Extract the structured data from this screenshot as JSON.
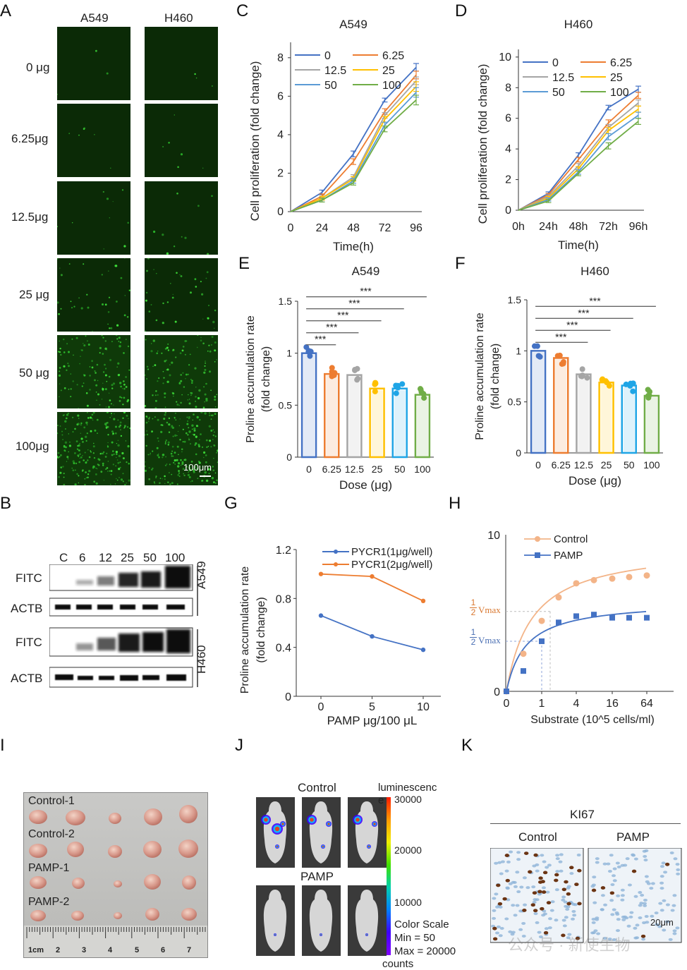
{
  "panels": {
    "A": {
      "label": "A",
      "cols": [
        "A549",
        "H460"
      ],
      "rows": [
        "0 μg",
        "6.25μg",
        "12.5μg",
        "25 μg",
        "50 μg",
        "100μg"
      ],
      "scalebar": "100μm"
    },
    "B": {
      "label": "B",
      "lanes": [
        "C",
        "6",
        "12",
        "25",
        "50",
        "100"
      ],
      "rows": [
        "FITC",
        "ACTB",
        "FITC",
        "ACTB"
      ],
      "cells": [
        "A549",
        "H460"
      ]
    },
    "C": {
      "label": "C"
    },
    "D": {
      "label": "D"
    },
    "E": {
      "label": "E"
    },
    "F": {
      "label": "F"
    },
    "G": {
      "label": "G"
    },
    "H": {
      "label": "H",
      "vmax_half": "Vmax",
      "vmax_frac_num": "1",
      "vmax_frac_den": "2"
    },
    "I": {
      "label": "I",
      "rows": [
        "Control-1",
        "Control-2",
        "PAMP-1",
        "PAMP-2"
      ],
      "ruler": [
        "1cm",
        "2",
        "3",
        "4",
        "5",
        "6",
        "7"
      ]
    },
    "J": {
      "label": "J",
      "groups": [
        "Control",
        "PAMP"
      ],
      "colorbar_title": "luminescenc",
      "colorbar_title_tail": "e",
      "ticks": [
        "30000",
        "20000",
        "10000"
      ],
      "color_scale": "Color Scale",
      "min": "Min = 50",
      "max": "Max = 20000",
      "unit": "counts"
    },
    "K": {
      "label": "K",
      "title": "KI67",
      "cols": [
        "Control",
        "PAMP"
      ],
      "scalebar": "20μm"
    },
    "watermark": "公众号 · 新使生物"
  },
  "chart_data": [
    {
      "id": "C",
      "type": "line",
      "title": "A549",
      "xlabel": "Time(h)",
      "ylabel": "Cell proliferation (fold change)",
      "x": [
        0,
        24,
        48,
        72,
        96
      ],
      "xticks": [
        "0",
        "24",
        "48",
        "72",
        "96"
      ],
      "ylim": [
        0,
        8.8
      ],
      "yticks": [
        0,
        2,
        4,
        6,
        8
      ],
      "legend": "top-left",
      "legend_cols": 2,
      "series": [
        {
          "name": "0",
          "color": "#4472c4",
          "values": [
            0,
            1.0,
            3.0,
            5.8,
            7.5
          ],
          "err": [
            0,
            0.12,
            0.15,
            0.1,
            0.2
          ]
        },
        {
          "name": "6.25",
          "color": "#ed7d31",
          "values": [
            0,
            0.8,
            2.6,
            5.2,
            7.1
          ],
          "err": [
            0,
            0.12,
            0.15,
            0.15,
            0.2
          ]
        },
        {
          "name": "12.5",
          "color": "#a5a5a5",
          "values": [
            0,
            0.7,
            1.8,
            5.0,
            6.8
          ],
          "err": [
            0,
            0.1,
            0.12,
            0.15,
            0.2
          ]
        },
        {
          "name": "25",
          "color": "#ffc000",
          "values": [
            0,
            0.7,
            1.7,
            4.8,
            6.5
          ],
          "err": [
            0,
            0.1,
            0.12,
            0.15,
            0.25
          ]
        },
        {
          "name": "50",
          "color": "#5b9bd5",
          "values": [
            0,
            0.6,
            1.6,
            4.5,
            6.2
          ],
          "err": [
            0,
            0.1,
            0.12,
            0.15,
            0.25
          ]
        },
        {
          "name": "100",
          "color": "#70ad47",
          "values": [
            0,
            0.6,
            1.5,
            4.3,
            5.8
          ],
          "err": [
            0,
            0.1,
            0.12,
            0.15,
            0.25
          ]
        }
      ]
    },
    {
      "id": "D",
      "type": "line",
      "title": "H460",
      "xlabel": "Time(h)",
      "ylabel": "Cell proliferation (fold change)",
      "x": [
        0,
        24,
        48,
        72,
        96
      ],
      "xticks": [
        "0h",
        "24h",
        "48h",
        "72h",
        "96h"
      ],
      "ylim": [
        0,
        10.5
      ],
      "yticks": [
        0,
        2,
        4,
        6,
        8,
        10
      ],
      "legend": "top-left",
      "legend_cols": 2,
      "series": [
        {
          "name": "0",
          "color": "#4472c4",
          "values": [
            0,
            1.1,
            3.6,
            6.7,
            7.9
          ],
          "err": [
            0,
            0.1,
            0.15,
            0.15,
            0.2
          ]
        },
        {
          "name": "6.25",
          "color": "#ed7d31",
          "values": [
            0,
            1.0,
            3.3,
            5.7,
            7.5
          ],
          "err": [
            0,
            0.1,
            0.15,
            0.2,
            0.2
          ]
        },
        {
          "name": "12.5",
          "color": "#a5a5a5",
          "values": [
            0,
            0.9,
            2.9,
            5.4,
            7.0
          ],
          "err": [
            0,
            0.1,
            0.15,
            0.2,
            0.2
          ]
        },
        {
          "name": "25",
          "color": "#ffc000",
          "values": [
            0,
            0.8,
            2.7,
            5.2,
            6.6
          ],
          "err": [
            0,
            0.1,
            0.15,
            0.2,
            0.2
          ]
        },
        {
          "name": "50",
          "color": "#5b9bd5",
          "values": [
            0,
            0.7,
            2.5,
            4.8,
            6.2
          ],
          "err": [
            0,
            0.1,
            0.15,
            0.2,
            0.2
          ]
        },
        {
          "name": "100",
          "color": "#70ad47",
          "values": [
            0,
            0.6,
            2.4,
            4.2,
            5.8
          ],
          "err": [
            0,
            0.1,
            0.15,
            0.2,
            0.2
          ]
        }
      ]
    },
    {
      "id": "E",
      "type": "bar",
      "title": "A549",
      "xlabel": "Dose (μg)",
      "ylabel": "Proline accumulation rate",
      "ylabel2": "(fold change)",
      "categories": [
        "0",
        "6.25",
        "12.5",
        "25",
        "50",
        "100"
      ],
      "values": [
        1.0,
        0.8,
        0.79,
        0.66,
        0.66,
        0.6
      ],
      "ylim": [
        0,
        1.5
      ],
      "yticks": [
        "0",
        "0.5",
        "1",
        "1.5"
      ],
      "colors": [
        "#4472c4",
        "#ed7d31",
        "#a5a5a5",
        "#ffc000",
        "#1fa5e6",
        "#70ad47"
      ],
      "sig": [
        {
          "to": 1,
          "label": "***"
        },
        {
          "to": 2,
          "label": "***"
        },
        {
          "to": 3,
          "label": "***"
        },
        {
          "to": 4,
          "label": "***"
        },
        {
          "to": 5,
          "label": "***"
        }
      ]
    },
    {
      "id": "F",
      "type": "bar",
      "title": "H460",
      "xlabel": "Dose (μg)",
      "ylabel": "Proline accumulation rate",
      "ylabel2": "(fold change)",
      "categories": [
        "0",
        "6.25",
        "12.5",
        "25",
        "50",
        "100"
      ],
      "values": [
        1.0,
        0.93,
        0.77,
        0.69,
        0.66,
        0.56
      ],
      "ylim": [
        0,
        1.5
      ],
      "yticks": [
        "0",
        "0.5",
        "1",
        "1.5"
      ],
      "colors": [
        "#4472c4",
        "#ed7d31",
        "#a5a5a5",
        "#ffc000",
        "#1fa5e6",
        "#70ad47"
      ],
      "sig": [
        {
          "to": 2,
          "label": "***"
        },
        {
          "to": 3,
          "label": "***"
        },
        {
          "to": 4,
          "label": "***"
        },
        {
          "to": 5,
          "label": "***"
        }
      ]
    },
    {
      "id": "G",
      "type": "line",
      "xlabel": "PAMP μg/100 μL",
      "ylabel": "Proline accumulation rate",
      "ylabel2": "(fold change)",
      "x": [
        0,
        5,
        10
      ],
      "xticks": [
        "0",
        "5",
        "10"
      ],
      "ylim": [
        0,
        1.2
      ],
      "yticks": [
        "0",
        "0.4",
        "0.8",
        "1.2"
      ],
      "legend": "top-right",
      "series": [
        {
          "name": "PYCR1(1μg/well)",
          "color": "#4472c4",
          "values": [
            0.66,
            0.49,
            0.38
          ]
        },
        {
          "name": "PYCR1(2μg/well)",
          "color": "#ed7d31",
          "values": [
            1.0,
            0.98,
            0.78
          ]
        }
      ]
    },
    {
      "id": "H",
      "type": "scatter",
      "xlabel": "Substrate (10^5 cells/ml)",
      "xticks": [
        "0",
        "1",
        "4",
        "16",
        "64"
      ],
      "yticks": [
        "0",
        "10"
      ],
      "ylim": [
        0,
        10
      ],
      "legend": "top-left",
      "series": [
        {
          "name": "Control",
          "color": "#f3b488",
          "x": [
            0,
            0.5,
            1,
            2,
            3,
            4,
            5,
            6,
            7
          ],
          "values": [
            0,
            2.4,
            4.5,
            6.0,
            6.9,
            7.1,
            7.2,
            7.3,
            7.4
          ]
        },
        {
          "name": "PAMP",
          "color": "#4472c4",
          "x": [
            0,
            0.5,
            1,
            2,
            3,
            4,
            5,
            6,
            7
          ],
          "values": [
            0,
            1.3,
            3.2,
            4.4,
            4.8,
            4.9,
            4.7,
            4.7,
            4.7
          ]
        }
      ]
    }
  ]
}
